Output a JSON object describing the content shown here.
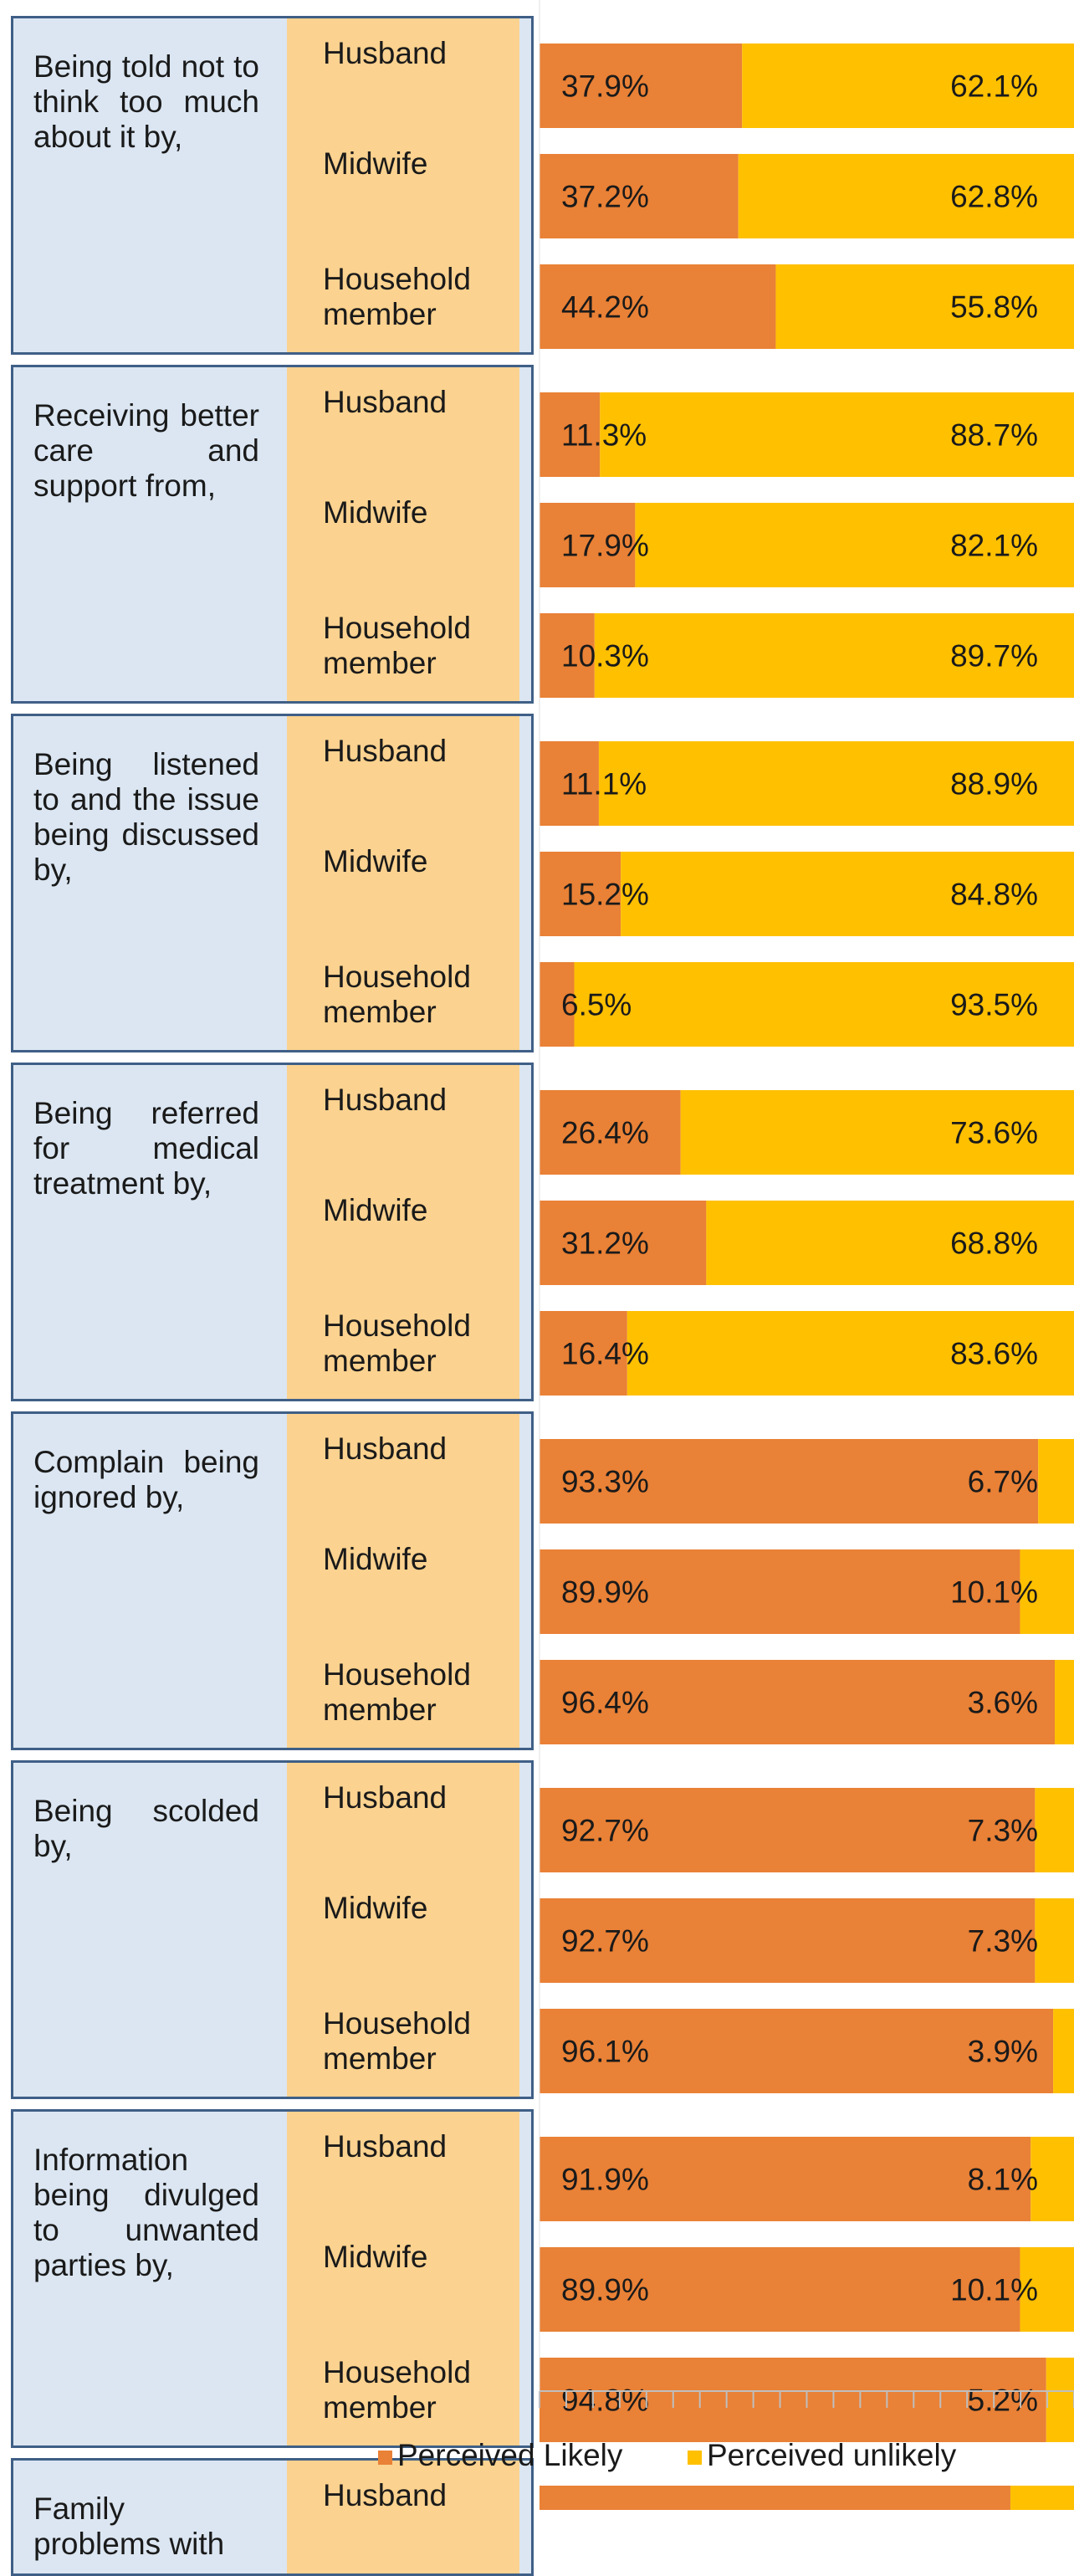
{
  "colors": {
    "likely": "#e98136",
    "unlikely": "#ffc000",
    "group_box": "#dbe6f2",
    "respondent_box": "#fbd28f",
    "border": "#3f5f86"
  },
  "legend": {
    "likely": "Perceived Likely",
    "unlikely": "Perceived unlikely"
  },
  "chart_data": {
    "type": "bar",
    "orientation": "horizontal-stacked-100",
    "xlim": [
      0,
      100
    ],
    "units": "%",
    "series_names": [
      "Perceived Likely",
      "Perceived unlikely"
    ],
    "groups": [
      {
        "label": "Being told not to think too much about it by,",
        "rows": [
          {
            "respondent": "Husband",
            "likely": 37.9,
            "unlikely": 62.1
          },
          {
            "respondent": "Midwife",
            "likely": 37.2,
            "unlikely": 62.8
          },
          {
            "respondent": "Household member",
            "likely": 44.2,
            "unlikely": 55.8
          }
        ]
      },
      {
        "label": "Receiving better care and support from,",
        "rows": [
          {
            "respondent": "Husband",
            "likely": 11.3,
            "unlikely": 88.7
          },
          {
            "respondent": "Midwife",
            "likely": 17.9,
            "unlikely": 82.1
          },
          {
            "respondent": "Household member",
            "likely": 10.3,
            "unlikely": 89.7
          }
        ]
      },
      {
        "label": "Being listened to and the issue being discussed by,",
        "rows": [
          {
            "respondent": "Husband",
            "likely": 11.1,
            "unlikely": 88.9
          },
          {
            "respondent": "Midwife",
            "likely": 15.2,
            "unlikely": 84.8
          },
          {
            "respondent": "Household member",
            "likely": 6.5,
            "unlikely": 93.5
          }
        ]
      },
      {
        "label": "Being referred for medical treatment by,",
        "rows": [
          {
            "respondent": "Husband",
            "likely": 26.4,
            "unlikely": 73.6
          },
          {
            "respondent": "Midwife",
            "likely": 31.2,
            "unlikely": 68.8
          },
          {
            "respondent": "Household member",
            "likely": 16.4,
            "unlikely": 83.6
          }
        ]
      },
      {
        "label": "Complain being ignored by,",
        "rows": [
          {
            "respondent": "Husband",
            "likely": 93.3,
            "unlikely": 6.7
          },
          {
            "respondent": "Midwife",
            "likely": 89.9,
            "unlikely": 10.1
          },
          {
            "respondent": "Household member",
            "likely": 96.4,
            "unlikely": 3.6
          }
        ]
      },
      {
        "label": "Being scolded by,",
        "rows": [
          {
            "respondent": "Husband",
            "likely": 92.7,
            "unlikely": 7.3
          },
          {
            "respondent": "Midwife",
            "likely": 92.7,
            "unlikely": 7.3
          },
          {
            "respondent": "Household member",
            "likely": 96.1,
            "unlikely": 3.9
          }
        ]
      },
      {
        "label": "Information being divulged to unwanted parties by,",
        "rows": [
          {
            "respondent": "Husband",
            "likely": 91.9,
            "unlikely": 8.1
          },
          {
            "respondent": "Midwife",
            "likely": 89.9,
            "unlikely": 10.1
          },
          {
            "respondent": "Household member",
            "likely": 94.8,
            "unlikely": 5.2
          }
        ]
      },
      {
        "label": "Family problems with",
        "rows": [
          {
            "respondent": "Husband",
            "likely": 88.1,
            "unlikely": 11.9
          }
        ]
      }
    ]
  }
}
